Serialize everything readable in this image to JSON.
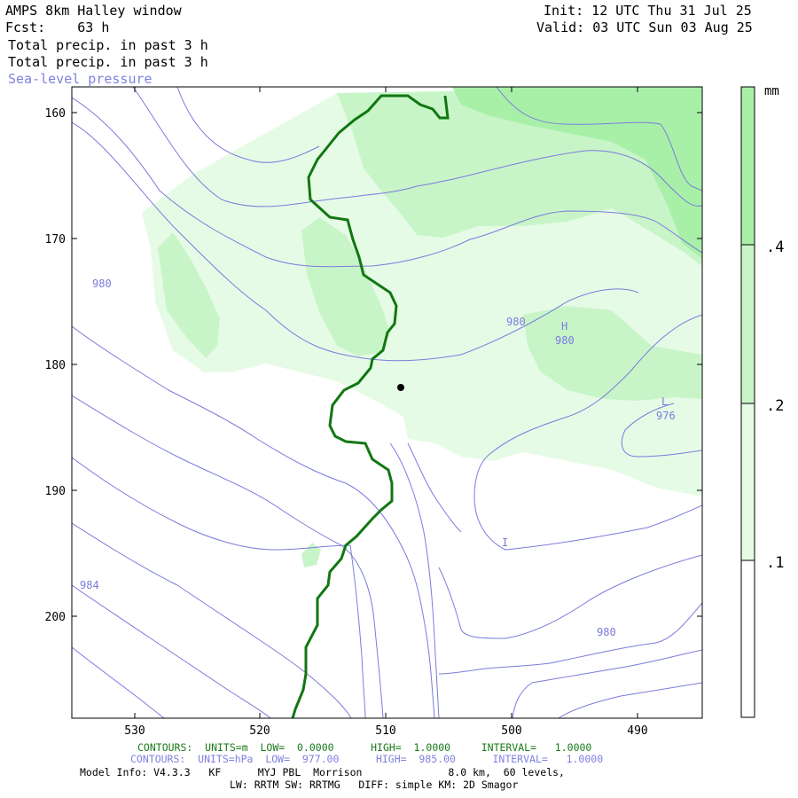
{
  "header": {
    "title": "AMPS 8km Halley window",
    "forecast": "Fcst:    63 h",
    "init": "Init: 12 UTC Thu 31 Jul 25",
    "valid": "Valid: 03 UTC Sun 03 Aug 25",
    "field1": "Total precip. in past 3 h",
    "field2": "Total precip. in past 3 h",
    "field3": "Sea-level pressure"
  },
  "colorbar": {
    "unit": "mm",
    "levels": [
      ".1",
      ".2",
      ".4"
    ],
    "colors": [
      "#ffffff",
      "#e6fbe6",
      "#c8f5c8",
      "#a8f0a8"
    ]
  },
  "axes": {
    "y_ticks": [
      "160",
      "170",
      "180",
      "190",
      "200"
    ],
    "x_ticks": [
      "530",
      "520",
      "510",
      "500",
      "490"
    ]
  },
  "contour_labels": {
    "p980_west": "980",
    "p980_mid": "980",
    "high_letter": "H",
    "high_value": "980",
    "low_letter": "L",
    "low_value": "976",
    "p984": "984",
    "p980_south": "980",
    "tick_mark": "I"
  },
  "footer": {
    "green_line": "CONTOURS:  UNITS=m  LOW=  0.0000      HIGH=  1.0000     INTERVAL=   1.0000",
    "blue_line": "CONTOURS:  UNITS=hPa  LOW=  977.00      HIGH=  985.00      INTERVAL=   1.0000",
    "model_line": "Model Info: V4.3.3   KF      MYJ PBL  Morrison              8.0 km,  60 levels,",
    "phys_line": "LW: RRTM SW: RRTMG   DIFF: simple KM: 2D Smagor"
  },
  "style": {
    "isobar_color": "#7b7bdc",
    "coast_color": "#117711",
    "frame_color": "#000000"
  }
}
